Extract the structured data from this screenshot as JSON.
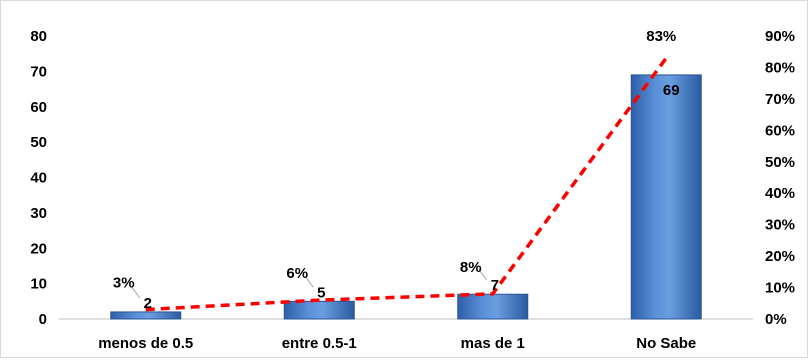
{
  "chart_data": {
    "type": "bar",
    "categories": [
      "menos de 0.5",
      "entre 0.5-1",
      "mas de 1",
      "No Sabe"
    ],
    "series": [
      {
        "type": "bar",
        "axis": "left",
        "values": [
          2,
          5,
          7,
          69
        ],
        "value_labels": [
          "2",
          "5",
          "7",
          "69"
        ],
        "color": "#4a7ec8"
      },
      {
        "type": "line",
        "axis": "right",
        "style": "dashed",
        "values": [
          3,
          6,
          8,
          83
        ],
        "value_labels": [
          "3%",
          "6%",
          "8%",
          "83%"
        ],
        "color": "#ff0000"
      }
    ],
    "y_left": {
      "ylim": [
        0,
        80
      ],
      "ticks": [
        "0",
        "10",
        "20",
        "30",
        "40",
        "50",
        "60",
        "70",
        "80"
      ]
    },
    "y_right": {
      "ylim": [
        0,
        90
      ],
      "ticks": [
        "0%",
        "10%",
        "20%",
        "30%",
        "40%",
        "50%",
        "60%",
        "70%",
        "80%",
        "90%"
      ]
    },
    "grid": false,
    "legend": "none"
  }
}
